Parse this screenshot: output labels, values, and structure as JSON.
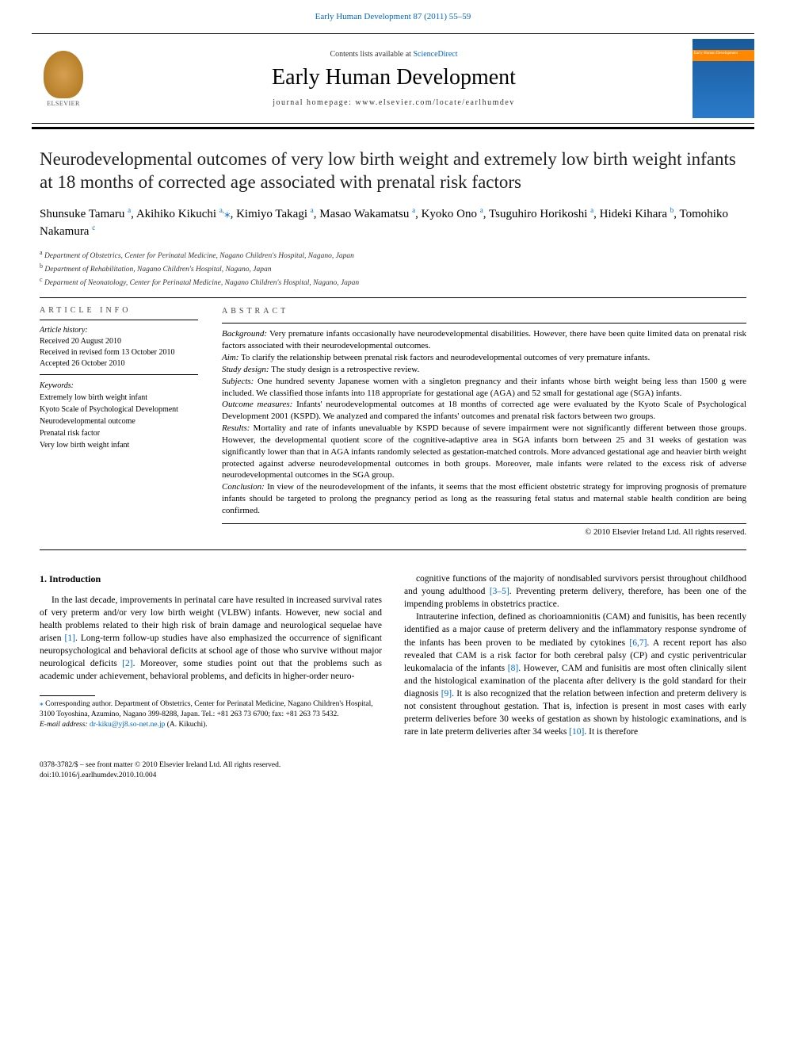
{
  "header": {
    "journal_ref": "Early Human Development 87 (2011) 55–59",
    "contents_line_prefix": "Contents lists available at ",
    "contents_link": "ScienceDirect",
    "journal_name": "Early Human Development",
    "homepage_label": "journal homepage: www.elsevier.com/locate/earlhumdev",
    "publisher_label": "ELSEVIER",
    "cover_text": "Early Human Development"
  },
  "article": {
    "title": "Neurodevelopmental outcomes of very low birth weight and extremely low birth weight infants at 18 months of corrected age associated with prenatal risk factors",
    "authors_html": "Shunsuke Tamaru <sup>a</sup>, Akihiko Kikuchi <sup>a,</sup><span class='star'>⁎</span>, Kimiyo Takagi <sup>a</sup>, Masao Wakamatsu <sup>a</sup>, Kyoko Ono <sup>a</sup>, Tsuguhiro Horikoshi <sup>a</sup>, Hideki Kihara <sup>b</sup>, Tomohiko Nakamura <sup>c</sup>",
    "affiliations": [
      {
        "key": "a",
        "text": "Department of Obstetrics, Center for Perinatal Medicine, Nagano Children's Hospital, Nagano, Japan"
      },
      {
        "key": "b",
        "text": "Department of Rehabilitation, Nagano Children's Hospital, Nagano, Japan"
      },
      {
        "key": "c",
        "text": "Deparment of Neonatology, Center for Perinatal Medicine, Nagano Children's Hospital, Nagano, Japan"
      }
    ]
  },
  "article_info": {
    "heading": "ARTICLE INFO",
    "history_label": "Article history:",
    "received": "Received 20 August 2010",
    "revised": "Received in revised form 13 October 2010",
    "accepted": "Accepted 26 October 2010",
    "keywords_label": "Keywords:",
    "keywords": [
      "Extremely low birth weight infant",
      "Kyoto Scale of Psychological Development",
      "Neurodevelopmental outcome",
      "Prenatal risk factor",
      "Very low birth weight infant"
    ]
  },
  "abstract": {
    "heading": "ABSTRACT",
    "sections": [
      {
        "label": "Background:",
        "text": " Very premature infants occasionally have neurodevelopmental disabilities. However, there have been quite limited data on prenatal risk factors associated with their neurodevelopmental outcomes."
      },
      {
        "label": "Aim:",
        "text": " To clarify the relationship between prenatal risk factors and neurodevelopmental outcomes of very premature infants."
      },
      {
        "label": "Study design:",
        "text": " The study design is a retrospective review."
      },
      {
        "label": "Subjects:",
        "text": " One hundred seventy Japanese women with a singleton pregnancy and their infants whose birth weight being less than 1500 g were included. We classified those infants into 118 appropriate for gestational age (AGA) and 52 small for gestational age (SGA) infants."
      },
      {
        "label": "Outcome measures:",
        "text": " Infants' neurodevelopmental outcomes at 18 months of corrected age were evaluated by the Kyoto Scale of Psychological Development 2001 (KSPD). We analyzed and compared the infants' outcomes and prenatal risk factors between two groups."
      },
      {
        "label": "Results:",
        "text": " Mortality and rate of infants unevaluable by KSPD because of severe impairment were not significantly different between those groups. However, the developmental quotient score of the cognitive-adaptive area in SGA infants born between 25 and 31 weeks of gestation was significantly lower than that in AGA infants randomly selected as gestation-matched controls. More advanced gestational age and heavier birth weight protected against adverse neurodevelopmental outcomes in both groups. Moreover, male infants were related to the excess risk of adverse neurodevelopmental outcomes in the SGA group."
      },
      {
        "label": "Conclusion:",
        "text": " In view of the neurodevelopment of the infants, it seems that the most efficient obstetric strategy for improving prognosis of premature infants should be targeted to prolong the pregnancy period as long as the reassuring fetal status and maternal stable health condition are being confirmed."
      }
    ],
    "copyright": "© 2010 Elsevier Ireland Ltd. All rights reserved."
  },
  "body": {
    "section_number": "1.",
    "section_title": "Introduction",
    "col1_p1": "In the last decade, improvements in perinatal care have resulted in increased survival rates of very preterm and/or very low birth weight (VLBW) infants. However, new social and health problems related to their high risk of brain damage and neurological sequelae have arisen [1]. Long-term follow-up studies have also emphasized the occurrence of significant neuropsychological and behavioral deficits at school age of those who survive without major neurological deficits [2]. Moreover, some studies point out that the problems such as academic under achievement, behavioral problems, and deficits in higher-order neuro-",
    "col2_p1": "cognitive functions of the majority of nondisabled survivors persist throughout childhood and young adulthood [3–5]. Preventing preterm delivery, therefore, has been one of the impending problems in obstetrics practice.",
    "col2_p2": "Intrauterine infection, defined as chorioamnionitis (CAM) and funisitis, has been recently identified as a major cause of preterm delivery and the inflammatory response syndrome of the infants has been proven to be mediated by cytokines [6,7]. A recent report has also revealed that CAM is a risk factor for both cerebral palsy (CP) and cystic periventricular leukomalacia of the infants [8]. However, CAM and funisitis are most often clinically silent and the histological examination of the placenta after delivery is the gold standard for their diagnosis [9]. It is also recognized that the relation between infection and preterm delivery is not consistent throughout gestation. That is, infection is present in most cases with early preterm deliveries before 30 weeks of gestation as shown by histologic examinations, and is rare in late preterm deliveries after 34 weeks [10]. It is therefore"
  },
  "footnotes": {
    "corr": "Corresponding author. Department of Obstetrics, Center for Perinatal Medicine, Nagano Children's Hospital, 3100 Toyoshina, Azumino, Nagano 399-8288, Japan. Tel.: +81 263 73 6700; fax: +81 263 73 5432.",
    "email_label": "E-mail address:",
    "email": "dr-kiku@yj8.so-net.ne.jp",
    "email_person": "(A. Kikuchi)."
  },
  "page_footer": {
    "line1": "0378-3782/$ – see front matter © 2010 Elsevier Ireland Ltd. All rights reserved.",
    "line2": "doi:10.1016/j.earlhumdev.2010.10.004"
  },
  "colors": {
    "link": "#0066cc",
    "text": "#000000",
    "cover_bg_top": "#1a5a9a",
    "cover_bg_bottom": "#2a7aca",
    "cover_band": "#ff8800"
  },
  "typography": {
    "title_fontsize": 23,
    "journal_name_fontsize": 28,
    "body_fontsize": 11.5,
    "abstract_fontsize": 11,
    "info_fontsize": 10,
    "footnote_fontsize": 9.5
  }
}
